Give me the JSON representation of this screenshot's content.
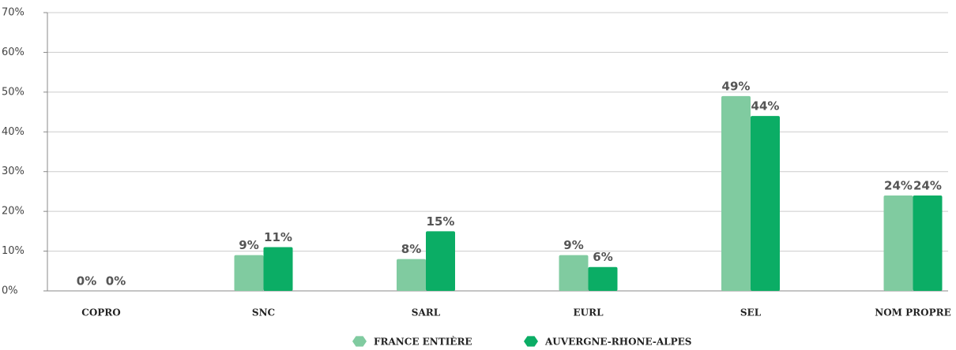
{
  "chart_data": {
    "type": "bar",
    "categories": [
      "COPRO",
      "SNC",
      "SARL",
      "EURL",
      "SEL",
      "NOM PROPRE"
    ],
    "series": [
      {
        "name": "FRANCE ENTIÈRE",
        "color": "#80cba0",
        "values": [
          0,
          9,
          8,
          9,
          49,
          24
        ],
        "value_labels": [
          "0%",
          "9%",
          "8%",
          "9%",
          "49%",
          "24%"
        ]
      },
      {
        "name": "AUVERGNE-RHONE-ALPES",
        "color": "#0bad65",
        "values": [
          0,
          11,
          15,
          6,
          44,
          24
        ],
        "value_labels": [
          "0%",
          "11%",
          "15%",
          "6%",
          "44%",
          "24%"
        ]
      }
    ],
    "ylim": [
      0,
      70
    ],
    "yticks": [
      {
        "value": 0,
        "label": "0%"
      },
      {
        "value": 10,
        "label": "10%"
      },
      {
        "value": 20,
        "label": "20%"
      },
      {
        "value": 30,
        "label": "30%"
      },
      {
        "value": 40,
        "label": "40%"
      },
      {
        "value": 50,
        "label": "50%"
      },
      {
        "value": 60,
        "label": "60%"
      },
      {
        "value": 70,
        "label": "70%"
      }
    ],
    "grid": true,
    "legend": "bottom"
  }
}
